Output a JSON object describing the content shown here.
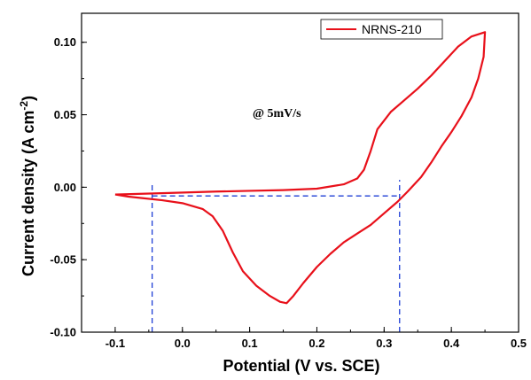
{
  "chart_data": {
    "type": "line",
    "xlabel": "Potential (V vs. SCE)",
    "ylabel_main": "Current density (A cm",
    "ylabel_sup": "-2",
    "ylabel_close": ")",
    "xlim": [
      -0.15,
      0.5
    ],
    "ylim": [
      -0.1,
      0.12
    ],
    "x_ticks": [
      -0.1,
      0.0,
      0.1,
      0.2,
      0.3,
      0.4,
      0.5
    ],
    "x_tick_labels": [
      "-0.1",
      "0.0",
      "0.1",
      "0.2",
      "0.3",
      "0.4",
      "0.5"
    ],
    "y_ticks": [
      -0.1,
      -0.05,
      0.0,
      0.05,
      0.1
    ],
    "y_tick_labels": [
      "-0.10",
      "-0.05",
      "0.00",
      "0.05",
      "0.10"
    ],
    "annotation": "@ 5mV/s",
    "legend_position": "top-right",
    "series": [
      {
        "name": "NRNS-210",
        "color": "#e8101a",
        "points": [
          [
            -0.1,
            -0.005
          ],
          [
            -0.06,
            -0.0045
          ],
          [
            -0.02,
            -0.004
          ],
          [
            0.05,
            -0.003
          ],
          [
            0.1,
            -0.0025
          ],
          [
            0.15,
            -0.002
          ],
          [
            0.2,
            -0.001
          ],
          [
            0.24,
            0.002
          ],
          [
            0.26,
            0.006
          ],
          [
            0.27,
            0.012
          ],
          [
            0.28,
            0.025
          ],
          [
            0.29,
            0.04
          ],
          [
            0.31,
            0.052
          ],
          [
            0.33,
            0.06
          ],
          [
            0.35,
            0.068
          ],
          [
            0.37,
            0.077
          ],
          [
            0.39,
            0.087
          ],
          [
            0.41,
            0.097
          ],
          [
            0.43,
            0.104
          ],
          [
            0.45,
            0.107
          ],
          [
            0.448,
            0.09
          ],
          [
            0.44,
            0.075
          ],
          [
            0.43,
            0.062
          ],
          [
            0.415,
            0.049
          ],
          [
            0.4,
            0.038
          ],
          [
            0.385,
            0.028
          ],
          [
            0.37,
            0.017
          ],
          [
            0.355,
            0.007
          ],
          [
            0.335,
            -0.003
          ],
          [
            0.32,
            -0.01
          ],
          [
            0.3,
            -0.018
          ],
          [
            0.28,
            -0.026
          ],
          [
            0.26,
            -0.032
          ],
          [
            0.24,
            -0.038
          ],
          [
            0.22,
            -0.046
          ],
          [
            0.2,
            -0.055
          ],
          [
            0.18,
            -0.066
          ],
          [
            0.165,
            -0.075
          ],
          [
            0.155,
            -0.08
          ],
          [
            0.145,
            -0.079
          ],
          [
            0.13,
            -0.075
          ],
          [
            0.11,
            -0.068
          ],
          [
            0.09,
            -0.058
          ],
          [
            0.075,
            -0.045
          ],
          [
            0.06,
            -0.03
          ],
          [
            0.045,
            -0.02
          ],
          [
            0.03,
            -0.015
          ],
          [
            0.0,
            -0.011
          ],
          [
            -0.03,
            -0.009
          ],
          [
            -0.06,
            -0.0075
          ],
          [
            -0.08,
            -0.0065
          ],
          [
            -0.1,
            -0.005
          ]
        ]
      }
    ],
    "reference_lines": {
      "color": "#1f3fd6",
      "horizontal_y": -0.006,
      "horizontal_x_range": [
        -0.045,
        0.323
      ],
      "verticals": [
        {
          "x": -0.045,
          "y_range": [
            -0.1,
            0.003
          ]
        },
        {
          "x": 0.323,
          "y_range": [
            -0.1,
            0.005
          ]
        }
      ]
    }
  }
}
